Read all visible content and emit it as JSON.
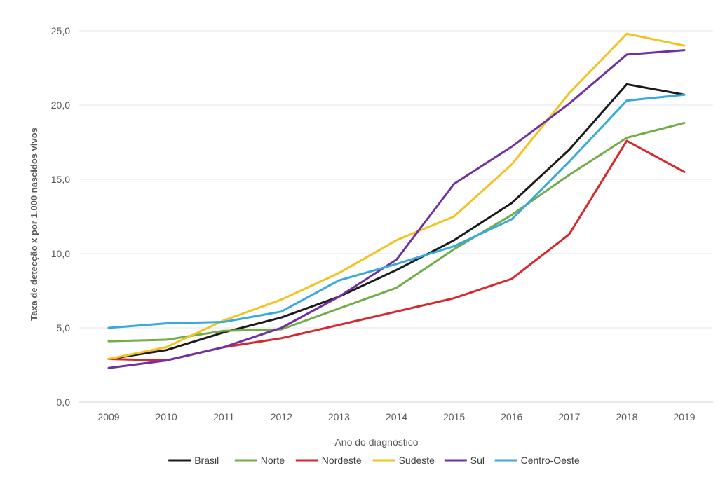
{
  "chart_data": {
    "type": "line",
    "title": "",
    "xlabel": "Ano do diagnóstico",
    "ylabel": "Taxa de detecção x por 1.000 nascidos vivos",
    "x": [
      "2009",
      "2010",
      "2011",
      "2012",
      "2013",
      "2014",
      "2015",
      "2016",
      "2017",
      "2018",
      "2019"
    ],
    "ylim": [
      0,
      25
    ],
    "yticks": [
      "0,0",
      "5,0",
      "10,0",
      "15,0",
      "20,0",
      "25,0"
    ],
    "grid": "horizontal",
    "legend_position": "bottom",
    "series": [
      {
        "name": "Brasil",
        "color": "#1a1a1a",
        "values": [
          2.9,
          3.5,
          4.7,
          5.7,
          7.1,
          8.9,
          10.9,
          13.4,
          17.0,
          21.4,
          20.7
        ]
      },
      {
        "name": "Norte",
        "color": "#70ad47",
        "values": [
          4.1,
          4.2,
          4.8,
          4.9,
          6.3,
          7.7,
          10.3,
          12.6,
          15.3,
          17.8,
          18.8
        ]
      },
      {
        "name": "Nordeste",
        "color": "#d9262c",
        "values": [
          2.9,
          2.8,
          3.7,
          4.3,
          5.2,
          6.1,
          7.0,
          8.3,
          11.3,
          17.6,
          15.5
        ]
      },
      {
        "name": "Sudeste",
        "color": "#f2c220",
        "values": [
          2.9,
          3.7,
          5.5,
          6.9,
          8.7,
          10.9,
          12.5,
          16.0,
          20.8,
          24.8,
          24.0
        ]
      },
      {
        "name": "Sul",
        "color": "#7030a0",
        "values": [
          2.3,
          2.8,
          3.7,
          5.0,
          7.1,
          9.6,
          14.7,
          17.2,
          20.1,
          23.4,
          23.7
        ]
      },
      {
        "name": "Centro-Oeste",
        "color": "#36a9e0",
        "values": [
          5.0,
          5.3,
          5.4,
          6.1,
          8.2,
          9.3,
          10.5,
          12.3,
          16.2,
          20.3,
          20.7
        ]
      }
    ]
  }
}
